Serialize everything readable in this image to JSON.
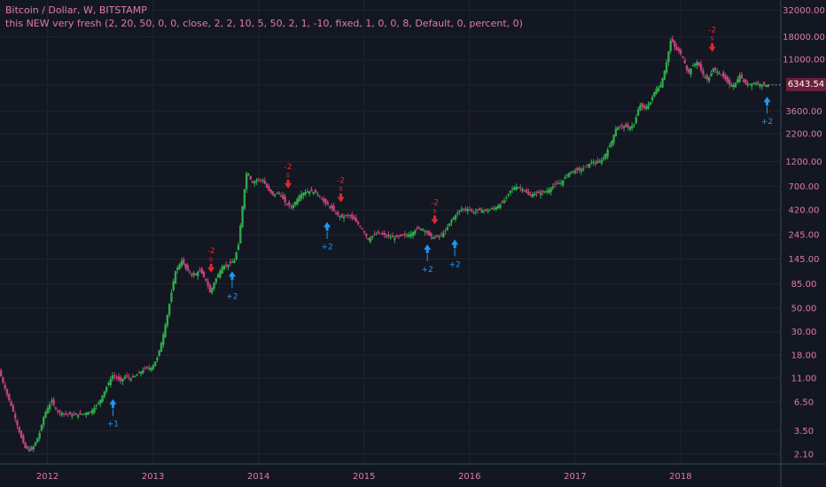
{
  "header": {
    "symbol_title": "Bitcoin / Dollar, W, BITSTAMP",
    "study_title": "this NEW very fresh (2, 20, 50, 0, 0, close, 2, 2, 10, 5, 50, 2, 1, -10, fixed, 1, 0, 0, 8, Default, 0, percent, 0)"
  },
  "price_tag": "6343.54",
  "colors": {
    "background": "#131722",
    "grid": "#1f2433",
    "axis_text": "#e07aa6",
    "up_candle": "#2ea84a",
    "down_candle": "#c2417a",
    "buy_arrow": "#2196f3",
    "sell_arrow": "#e5262b",
    "axis_line": "#2a4d5a"
  },
  "chart_data": {
    "type": "candlestick",
    "scale": "log",
    "ylim": [
      1.7,
      40000
    ],
    "xlim": [
      2011.55,
      2018.95
    ],
    "grid": true,
    "y_ticks": [
      "32000.00",
      "18000.00",
      "11000.00",
      "6343.54",
      "3600.00",
      "2200.00",
      "1200.00",
      "700.00",
      "420.00",
      "245.00",
      "145.00",
      "85.00",
      "50.00",
      "30.00",
      "18.00",
      "11.00",
      "6.50",
      "3.50",
      "2.10"
    ],
    "y_tick_values": [
      32000,
      18000,
      11000,
      6343.54,
      3600,
      2200,
      1200,
      700,
      420,
      245,
      145,
      85,
      50,
      30,
      18,
      11,
      6.5,
      3.5,
      2.1
    ],
    "x_ticks": [
      "2012",
      "2013",
      "2014",
      "2015",
      "2016",
      "2017",
      "2018"
    ],
    "x_tick_values": [
      2012,
      2013,
      2014,
      2015,
      2016,
      2017,
      2018
    ],
    "price_path": [
      [
        2011.55,
        13
      ],
      [
        2011.62,
        8
      ],
      [
        2011.68,
        5.5
      ],
      [
        2011.75,
        3.2
      ],
      [
        2011.8,
        2.4
      ],
      [
        2011.86,
        2.3
      ],
      [
        2011.93,
        3.2
      ],
      [
        2011.98,
        5.0
      ],
      [
        2012.05,
        6.7
      ],
      [
        2012.1,
        5.3
      ],
      [
        2012.17,
        5.1
      ],
      [
        2012.25,
        4.9
      ],
      [
        2012.33,
        5.0
      ],
      [
        2012.42,
        5.3
      ],
      [
        2012.5,
        6.5
      ],
      [
        2012.58,
        9.5
      ],
      [
        2012.63,
        11.8
      ],
      [
        2012.7,
        10.2
      ],
      [
        2012.75,
        11.5
      ],
      [
        2012.8,
        10.8
      ],
      [
        2012.87,
        12.0
      ],
      [
        2012.93,
        13.4
      ],
      [
        2013.0,
        13.8
      ],
      [
        2013.05,
        17
      ],
      [
        2013.1,
        26
      ],
      [
        2013.15,
        45
      ],
      [
        2013.22,
        110
      ],
      [
        2013.28,
        140
      ],
      [
        2013.33,
        115
      ],
      [
        2013.4,
        100
      ],
      [
        2013.45,
        115
      ],
      [
        2013.52,
        88
      ],
      [
        2013.55,
        70
      ],
      [
        2013.6,
        92
      ],
      [
        2013.67,
        125
      ],
      [
        2013.72,
        128
      ],
      [
        2013.78,
        140
      ],
      [
        2013.82,
        200
      ],
      [
        2013.86,
        480
      ],
      [
        2013.9,
        1000
      ],
      [
        2013.95,
        750
      ],
      [
        2014.0,
        820
      ],
      [
        2014.05,
        800
      ],
      [
        2014.1,
        650
      ],
      [
        2014.15,
        580
      ],
      [
        2014.2,
        620
      ],
      [
        2014.27,
        480
      ],
      [
        2014.33,
        450
      ],
      [
        2014.4,
        580
      ],
      [
        2014.45,
        620
      ],
      [
        2014.5,
        635
      ],
      [
        2014.57,
        600
      ],
      [
        2014.63,
        500
      ],
      [
        2014.7,
        440
      ],
      [
        2014.75,
        380
      ],
      [
        2014.8,
        360
      ],
      [
        2014.87,
        375
      ],
      [
        2014.93,
        330
      ],
      [
        2015.0,
        270
      ],
      [
        2015.05,
        220
      ],
      [
        2015.1,
        245
      ],
      [
        2015.15,
        255
      ],
      [
        2015.22,
        240
      ],
      [
        2015.3,
        230
      ],
      [
        2015.37,
        240
      ],
      [
        2015.45,
        250
      ],
      [
        2015.52,
        285
      ],
      [
        2015.58,
        275
      ],
      [
        2015.63,
        240
      ],
      [
        2015.68,
        230
      ],
      [
        2015.73,
        240
      ],
      [
        2015.78,
        265
      ],
      [
        2015.83,
        330
      ],
      [
        2015.88,
        380
      ],
      [
        2015.93,
        430
      ],
      [
        2016.0,
        430
      ],
      [
        2016.05,
        400
      ],
      [
        2016.1,
        420
      ],
      [
        2016.18,
        415
      ],
      [
        2016.25,
        440
      ],
      [
        2016.33,
        500
      ],
      [
        2016.4,
        650
      ],
      [
        2016.45,
        700
      ],
      [
        2016.52,
        660
      ],
      [
        2016.57,
        580
      ],
      [
        2016.63,
        600
      ],
      [
        2016.7,
        615
      ],
      [
        2016.75,
        640
      ],
      [
        2016.82,
        730
      ],
      [
        2016.88,
        760
      ],
      [
        2016.93,
        900
      ],
      [
        2016.98,
        980
      ],
      [
        2017.05,
        1000
      ],
      [
        2017.1,
        1050
      ],
      [
        2017.17,
        1200
      ],
      [
        2017.22,
        1150
      ],
      [
        2017.28,
        1300
      ],
      [
        2017.35,
        1800
      ],
      [
        2017.4,
        2500
      ],
      [
        2017.45,
        2600
      ],
      [
        2017.52,
        2500
      ],
      [
        2017.57,
        2700
      ],
      [
        2017.62,
        4100
      ],
      [
        2017.67,
        3800
      ],
      [
        2017.72,
        4300
      ],
      [
        2017.77,
        5700
      ],
      [
        2017.82,
        6300
      ],
      [
        2017.87,
        9500
      ],
      [
        2017.92,
        17500
      ],
      [
        2017.96,
        14000
      ],
      [
        2018.0,
        13000
      ],
      [
        2018.04,
        11000
      ],
      [
        2018.08,
        8000
      ],
      [
        2018.12,
        9500
      ],
      [
        2018.17,
        10500
      ],
      [
        2018.22,
        8000
      ],
      [
        2018.27,
        7000
      ],
      [
        2018.32,
        9000
      ],
      [
        2018.37,
        8300
      ],
      [
        2018.42,
        7500
      ],
      [
        2018.47,
        6400
      ],
      [
        2018.52,
        6300
      ],
      [
        2018.57,
        7800
      ],
      [
        2018.62,
        6500
      ],
      [
        2018.67,
        6500
      ],
      [
        2018.72,
        6600
      ],
      [
        2018.77,
        6400
      ],
      [
        2018.83,
        6343.54
      ]
    ],
    "signals": [
      {
        "type": "buy",
        "x": 2012.62,
        "price": 7.5,
        "label": "+1"
      },
      {
        "type": "sell",
        "x": 2013.55,
        "price": 100,
        "label": "-2",
        "sub": "s"
      },
      {
        "type": "buy",
        "x": 2013.75,
        "price": 120,
        "label": "+2"
      },
      {
        "type": "sell",
        "x": 2014.28,
        "price": 620,
        "label": "-2",
        "sub": "s"
      },
      {
        "type": "buy",
        "x": 2014.65,
        "price": 350,
        "label": "+2"
      },
      {
        "type": "sell",
        "x": 2014.78,
        "price": 460,
        "label": "-2",
        "sub": "s"
      },
      {
        "type": "buy",
        "x": 2015.6,
        "price": 215,
        "label": "+2"
      },
      {
        "type": "sell",
        "x": 2015.67,
        "price": 285,
        "label": "-2",
        "sub": "s"
      },
      {
        "type": "buy",
        "x": 2015.86,
        "price": 240,
        "label": "+2"
      },
      {
        "type": "sell",
        "x": 2018.3,
        "price": 12000,
        "label": "-2",
        "sub": "s"
      },
      {
        "type": "buy",
        "x": 2018.82,
        "price": 5300,
        "label": "+2"
      }
    ]
  }
}
